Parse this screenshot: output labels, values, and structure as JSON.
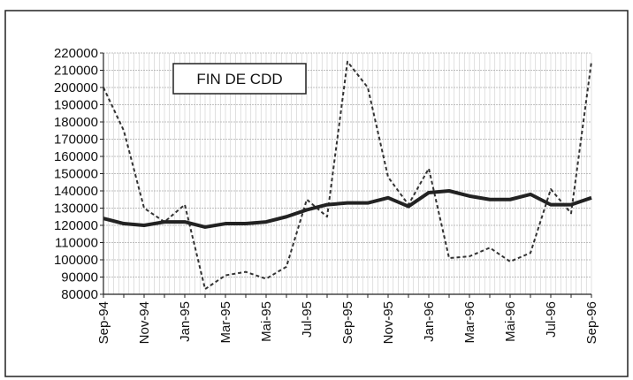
{
  "chart_data": {
    "type": "line",
    "title": "FIN DE CDD",
    "categories": [
      "Sep-94",
      null,
      "Nov-94",
      null,
      "Jan-95",
      null,
      "Mar-95",
      null,
      "Mai-95",
      null,
      "Jul-95",
      null,
      "Sep-95",
      null,
      "Nov-95",
      null,
      "Jan-96",
      null,
      "Mar-96",
      null,
      "Mai-96",
      null,
      "Jul-96",
      null,
      "Sep-96"
    ],
    "series": [
      {
        "color": "#333333",
        "dashed": true,
        "values": [
          200000,
          175000,
          130000,
          122000,
          132000,
          83000,
          91000,
          93000,
          89000,
          96000,
          135000,
          125000,
          215000,
          200000,
          148000,
          132000,
          153000,
          101000,
          102000,
          107000,
          99000,
          104000,
          141000,
          127000,
          215000
        ]
      },
      {
        "color": "#222222",
        "dashed": false,
        "values": [
          124000,
          121000,
          120000,
          122000,
          122000,
          119000,
          121000,
          121000,
          122000,
          125000,
          129000,
          132000,
          133000,
          133000,
          136000,
          131000,
          139000,
          140000,
          137000,
          135000,
          135000,
          138000,
          132000,
          132000,
          136000
        ]
      }
    ],
    "ylim": [
      80000,
      220000
    ],
    "yticks": [
      80000,
      90000,
      100000,
      110000,
      120000,
      130000,
      140000,
      150000,
      160000,
      170000,
      180000,
      190000,
      200000,
      210000,
      220000
    ],
    "grid": true
  }
}
